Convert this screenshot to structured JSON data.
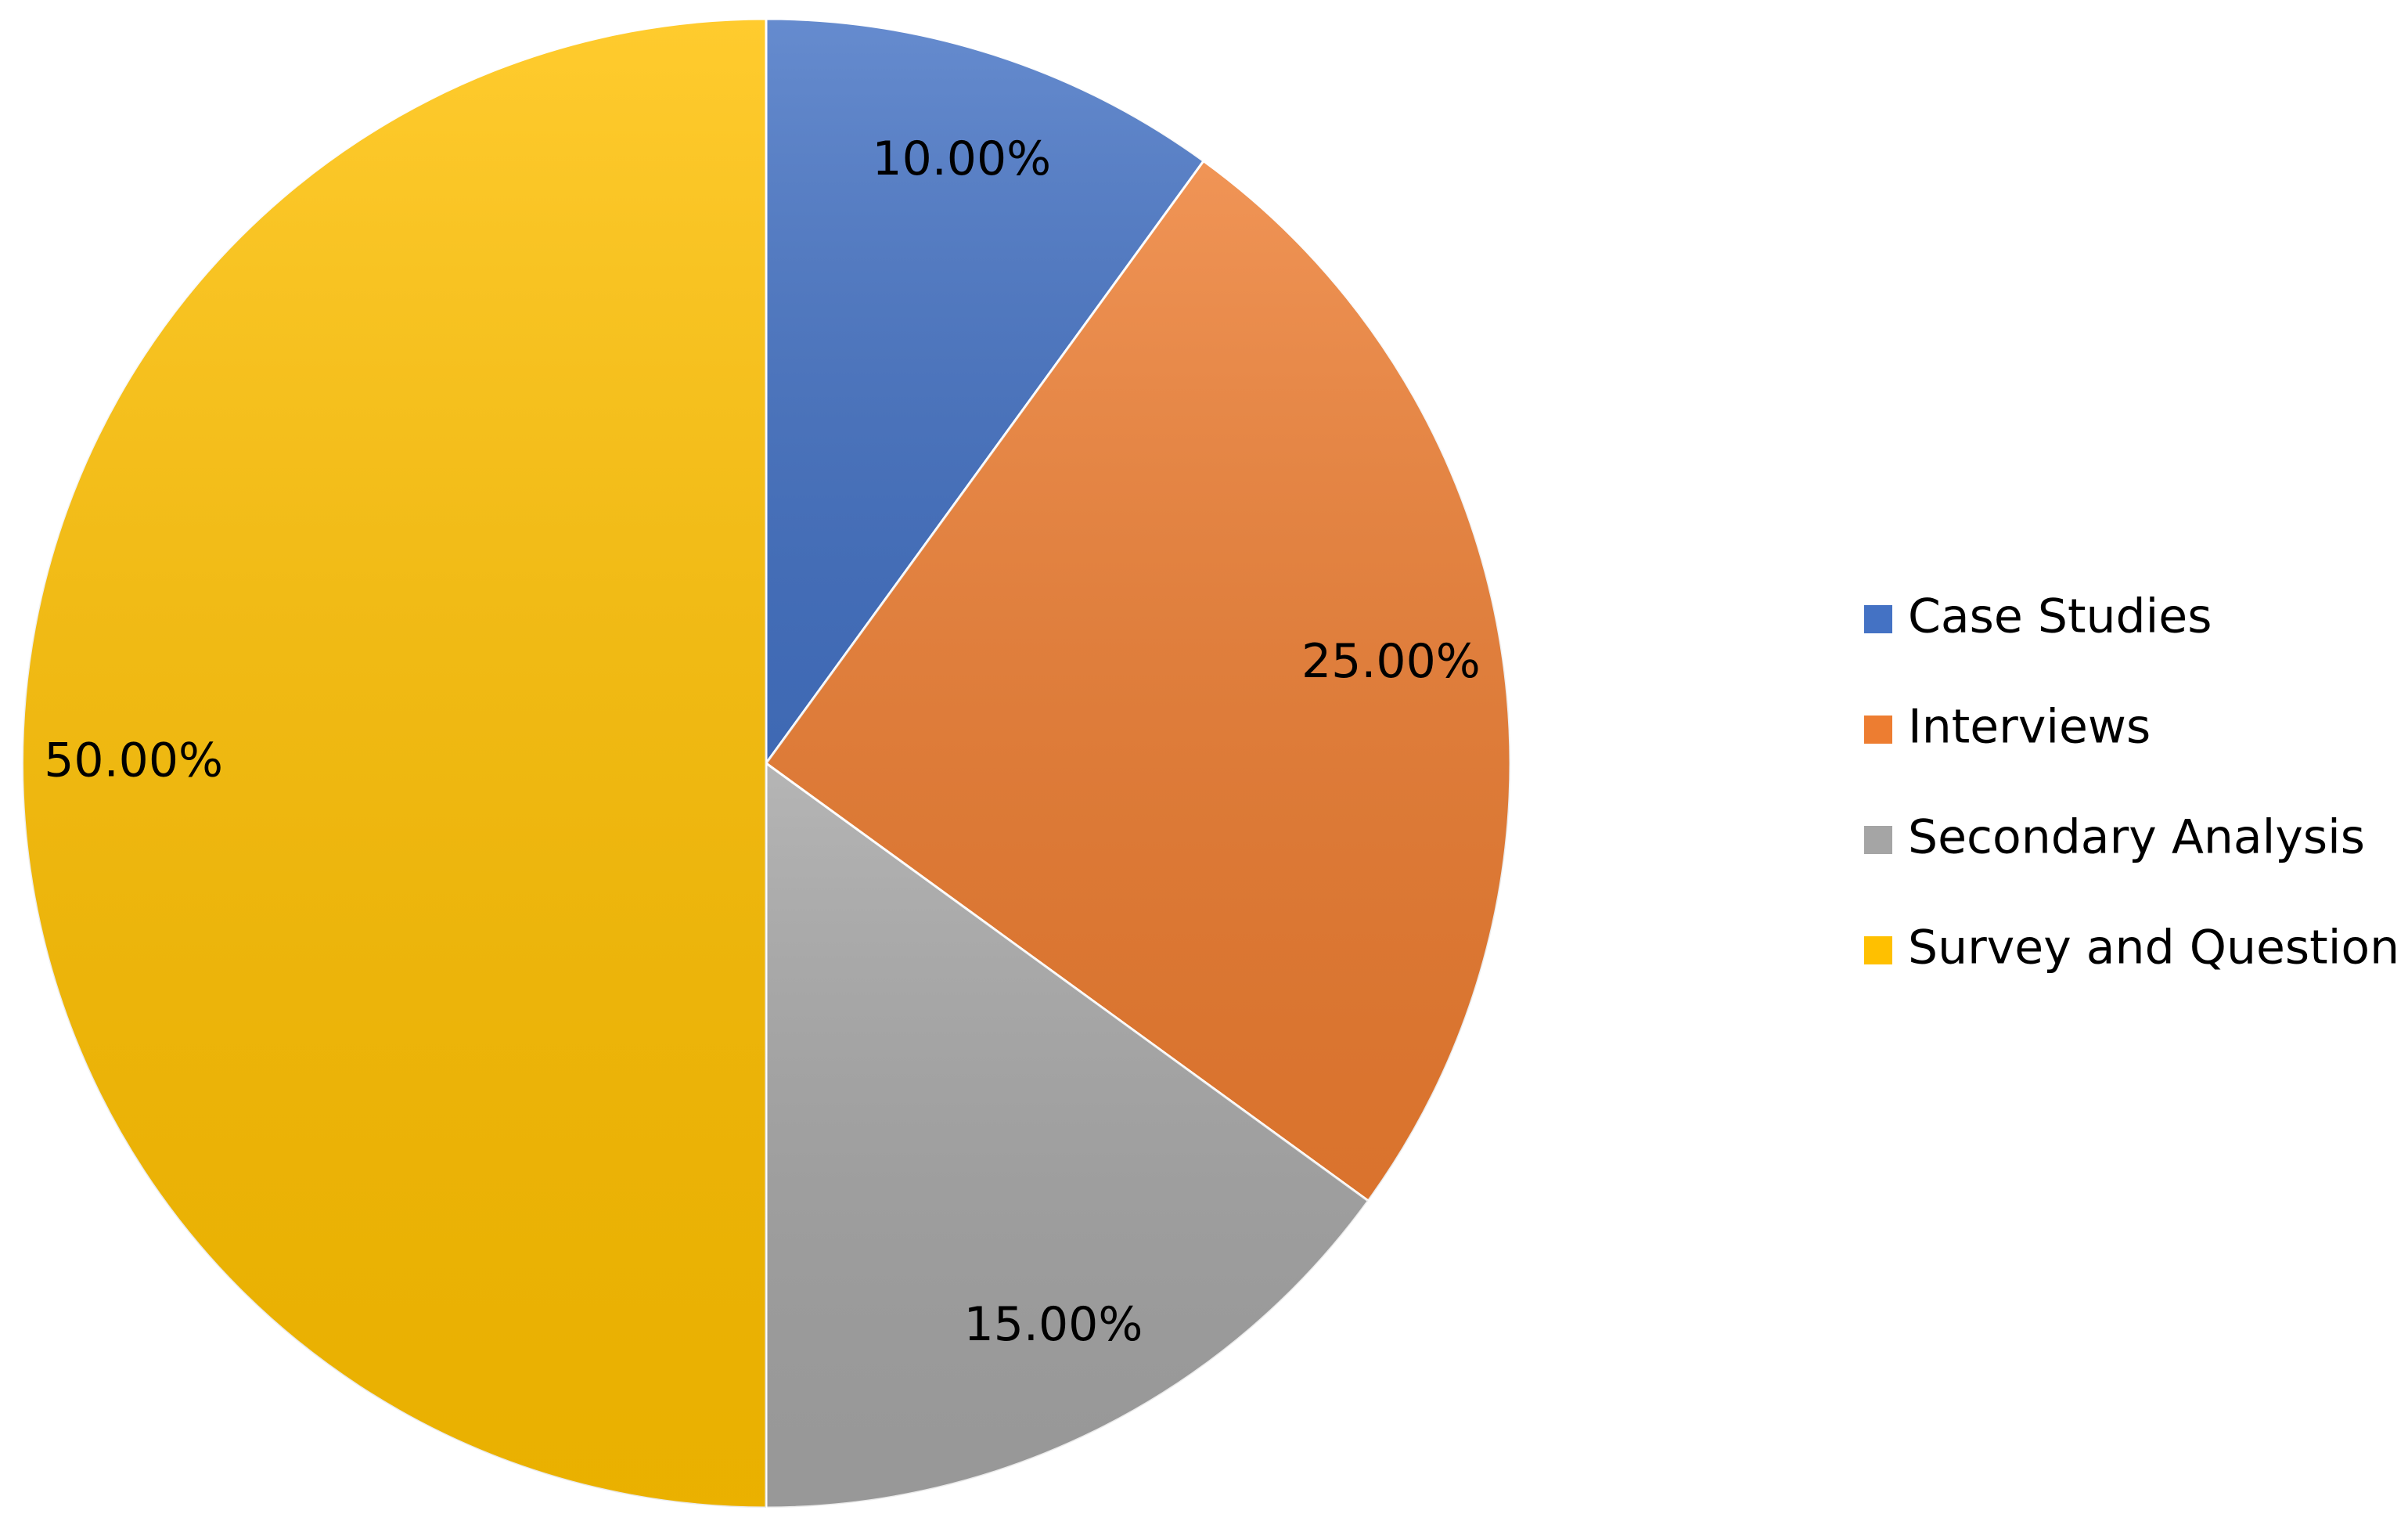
{
  "chart_data": {
    "type": "pie",
    "categories": [
      "Case Studies",
      "Interviews",
      "Secondary Analysis",
      "Survey and Question"
    ],
    "values": [
      10,
      25,
      15,
      50
    ],
    "value_labels": [
      "10.00%",
      "25.00%",
      "15.00%",
      "50.00%"
    ],
    "colors": [
      "#4472c4",
      "#ed7d31",
      "#a5a5a5",
      "#ffc000"
    ],
    "legend": "right"
  }
}
